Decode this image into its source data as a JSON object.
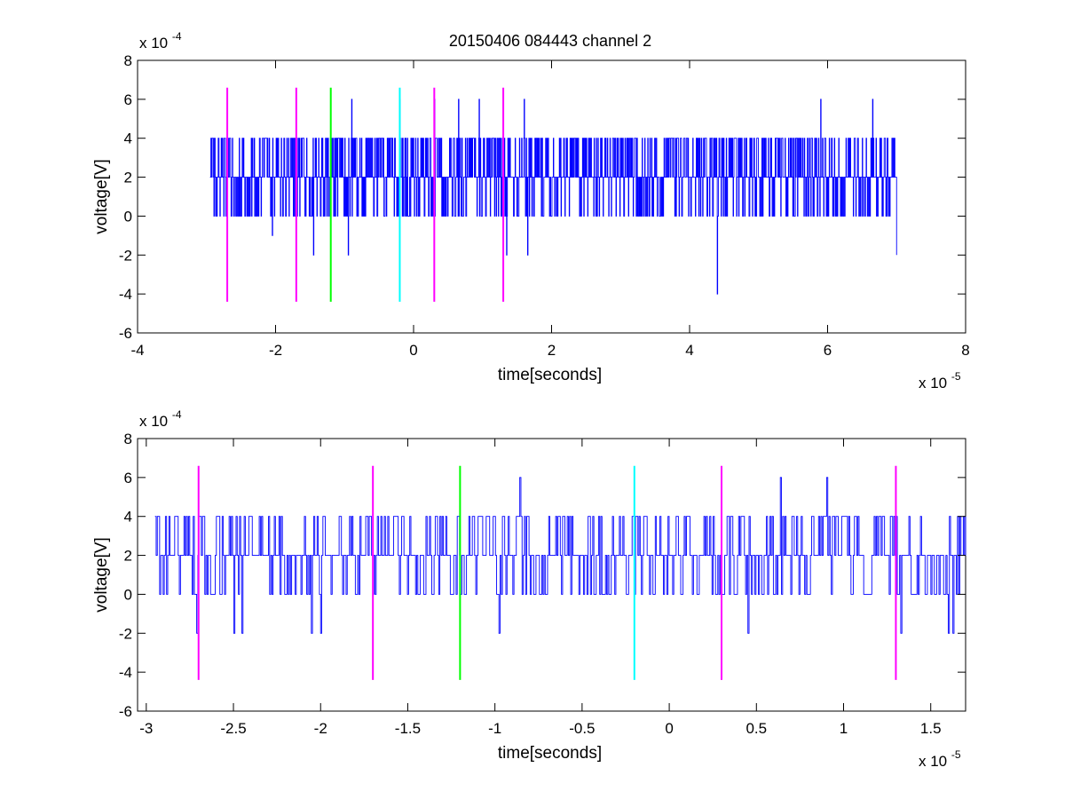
{
  "title": "20150406 084443 channel 2",
  "colors": {
    "signal": "#0000ff",
    "magenta": "#ff00ff",
    "green": "#00ff00",
    "cyan": "#00ffff",
    "axes": "#000000"
  },
  "chart_data": [
    {
      "type": "line",
      "title": "20150406 084443 channel 2",
      "xlabel": "time[seconds]",
      "ylabel": "voltage[V]",
      "x_exponent_base": "x 10",
      "x_exponent": "-5",
      "y_exponent_base": "x 10",
      "y_exponent": "-4",
      "xlim": [
        -4,
        8
      ],
      "ylim": [
        -6,
        8
      ],
      "xticks": [
        -4,
        -2,
        0,
        2,
        4,
        6,
        8
      ],
      "xtick_labels": [
        "-4",
        "-2",
        "0",
        "2",
        "4",
        "6",
        "8"
      ],
      "yticks": [
        -6,
        -4,
        -2,
        0,
        2,
        4,
        6,
        8
      ],
      "ytick_labels": [
        "-6",
        "-4",
        "-2",
        "0",
        "2",
        "4",
        "6",
        "8"
      ],
      "grid": false,
      "signal": {
        "color": "#0000ff",
        "x_range": [
          -2.95,
          7.0
        ],
        "levels": [
          -4,
          -2,
          0,
          2,
          4,
          6
        ],
        "baseline": 2,
        "samples": 1600,
        "spikes": [
          {
            "x": -2.05,
            "y": -1
          },
          {
            "x": -1.45,
            "y": -2
          },
          {
            "x": -0.9,
            "y": 6
          },
          {
            "x": -0.95,
            "y": -2
          },
          {
            "x": -0.2,
            "y": 6
          },
          {
            "x": 0.3,
            "y": 6
          },
          {
            "x": 0.65,
            "y": 6
          },
          {
            "x": 0.95,
            "y": 6
          },
          {
            "x": 1.35,
            "y": -2
          },
          {
            "x": 1.6,
            "y": 6
          },
          {
            "x": 1.65,
            "y": -2
          },
          {
            "x": 4.4,
            "y": -4
          },
          {
            "x": 5.9,
            "y": 6
          },
          {
            "x": 6.65,
            "y": 6
          },
          {
            "x": 7.0,
            "y": -2
          }
        ]
      },
      "markers": [
        {
          "x": -2.7,
          "color": "#ff00ff",
          "y_range": [
            -4.4,
            6.6
          ]
        },
        {
          "x": -1.7,
          "color": "#ff00ff",
          "y_range": [
            -4.4,
            6.6
          ]
        },
        {
          "x": -1.2,
          "color": "#00ff00",
          "y_range": [
            -4.4,
            6.6
          ]
        },
        {
          "x": -0.2,
          "color": "#00ffff",
          "y_range": [
            -4.4,
            6.6
          ]
        },
        {
          "x": 0.3,
          "color": "#ff00ff",
          "y_range": [
            -4.4,
            6.6
          ]
        },
        {
          "x": 1.3,
          "color": "#ff00ff",
          "y_range": [
            -4.4,
            6.6
          ]
        }
      ]
    },
    {
      "type": "line",
      "title": "",
      "xlabel": "time[seconds]",
      "ylabel": "voltage[V]",
      "x_exponent_base": "x 10",
      "x_exponent": "-5",
      "y_exponent_base": "x 10",
      "y_exponent": "-4",
      "xlim": [
        -3.05,
        1.7
      ],
      "ylim": [
        -6,
        8
      ],
      "xticks": [
        -3,
        -2.5,
        -2,
        -1.5,
        -1,
        -0.5,
        0,
        0.5,
        1,
        1.5
      ],
      "xtick_labels": [
        "-3",
        "-2.5",
        "-2",
        "-1.5",
        "-1",
        "-0.5",
        "0",
        "0.5",
        "1",
        "1.5"
      ],
      "yticks": [
        -6,
        -4,
        -2,
        0,
        2,
        4,
        6,
        8
      ],
      "ytick_labels": [
        "-6",
        "-4",
        "-2",
        "0",
        "2",
        "4",
        "6",
        "8"
      ],
      "grid": false,
      "signal": {
        "color": "#0000ff",
        "x_range": [
          -2.95,
          1.7
        ],
        "levels": [
          -2,
          0,
          2,
          4,
          6
        ],
        "baseline": 2,
        "samples": 700,
        "spikes": [
          {
            "x": -2.71,
            "y": -2
          },
          {
            "x": -2.5,
            "y": -2
          },
          {
            "x": -2.45,
            "y": -2
          },
          {
            "x": -2.05,
            "y": -2
          },
          {
            "x": -2.0,
            "y": -2
          },
          {
            "x": -0.98,
            "y": -2
          },
          {
            "x": -0.86,
            "y": 6
          },
          {
            "x": 0.45,
            "y": -2
          },
          {
            "x": 0.64,
            "y": 6
          },
          {
            "x": 0.9,
            "y": 6
          },
          {
            "x": 1.33,
            "y": -2
          },
          {
            "x": 1.6,
            "y": -2
          },
          {
            "x": 1.63,
            "y": -2
          }
        ]
      },
      "markers": [
        {
          "x": -2.7,
          "color": "#ff00ff",
          "y_range": [
            -4.4,
            6.6
          ]
        },
        {
          "x": -1.7,
          "color": "#ff00ff",
          "y_range": [
            -4.4,
            6.6
          ]
        },
        {
          "x": -1.2,
          "color": "#00ff00",
          "y_range": [
            -4.4,
            6.6
          ]
        },
        {
          "x": -0.2,
          "color": "#00ffff",
          "y_range": [
            -4.4,
            6.6
          ]
        },
        {
          "x": 0.3,
          "color": "#ff00ff",
          "y_range": [
            -4.4,
            6.6
          ]
        },
        {
          "x": 1.3,
          "color": "#ff00ff",
          "y_range": [
            -4.4,
            6.6
          ]
        }
      ]
    }
  ]
}
